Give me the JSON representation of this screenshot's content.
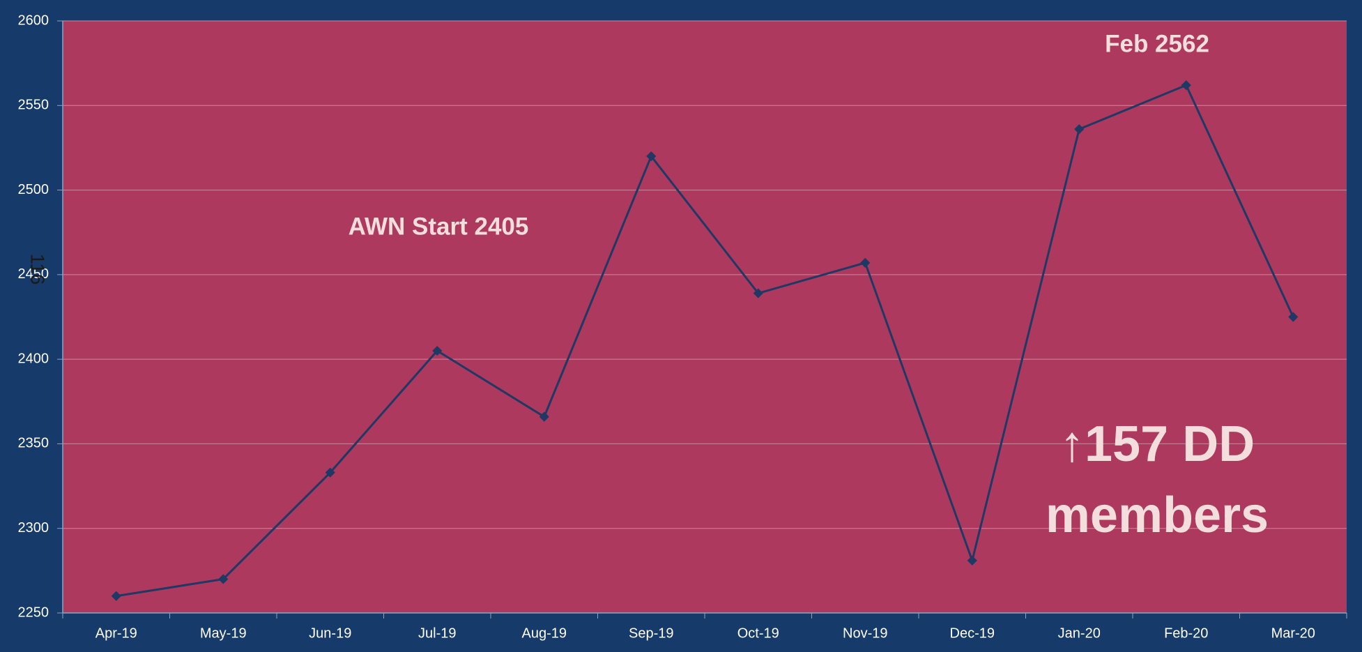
{
  "chart_data": {
    "type": "line",
    "categories": [
      "Apr-19",
      "May-19",
      "Jun-19",
      "Jul-19",
      "Aug-19",
      "Sep-19",
      "Oct-19",
      "Nov-19",
      "Dec-19",
      "Jan-20",
      "Feb-20",
      "Mar-20"
    ],
    "series": [
      {
        "color": "#1f3864",
        "values": [
          2260,
          2270,
          2333,
          2405,
          2366,
          2520,
          2439,
          2457,
          2281,
          2536,
          2562,
          2425
        ]
      }
    ],
    "ylim": [
      2250,
      2600
    ],
    "yticks": [
      2250,
      2300,
      2350,
      2400,
      2450,
      2500,
      2550,
      2600
    ],
    "grid": true,
    "annotations": [
      "AWN Start 2405",
      "Feb 2562",
      "↑157 DD",
      "members",
      "116"
    ]
  }
}
